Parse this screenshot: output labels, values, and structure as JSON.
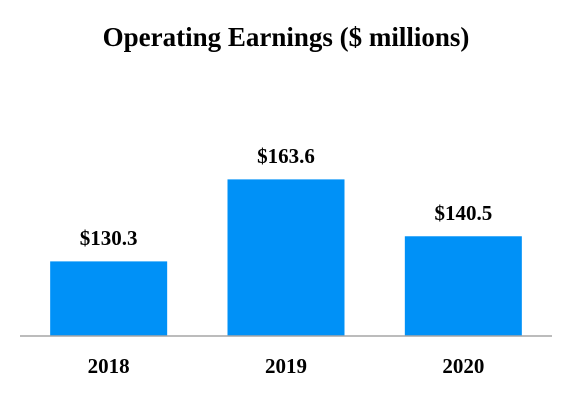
{
  "chart_data": {
    "type": "bar",
    "title": "Operating Earnings ($ millions)",
    "categories": [
      "2018",
      "2019",
      "2020"
    ],
    "values": [
      130.3,
      163.6,
      140.5
    ],
    "value_labels": [
      "$130.3",
      "$163.6",
      "$140.5"
    ],
    "color": "#0091f7",
    "ylim": [
      100,
      180
    ]
  }
}
